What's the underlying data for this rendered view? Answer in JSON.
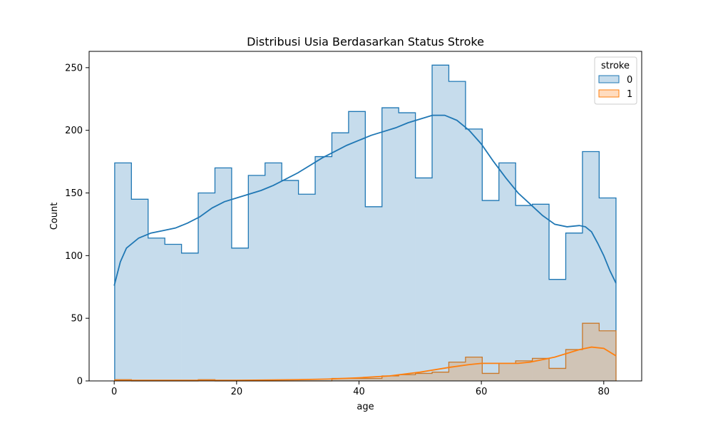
{
  "chart_data": {
    "type": "histogram",
    "title": "Distribusi Usia Berdasarkan Status Stroke",
    "xlabel": "age",
    "ylabel": "Count",
    "xlim": [
      -4.1,
      86.2
    ],
    "ylim": [
      0,
      263
    ],
    "x_ticks": [
      0,
      20,
      40,
      60,
      80
    ],
    "y_ticks": [
      0,
      50,
      100,
      150,
      200,
      250
    ],
    "grid": false,
    "legend": {
      "title": "stroke",
      "position": "top-right"
    },
    "bin_edges": [
      0.08,
      2.81,
      5.54,
      8.27,
      11.0,
      13.73,
      16.46,
      19.19,
      21.92,
      24.65,
      27.38,
      30.11,
      32.84,
      35.57,
      38.3,
      41.03,
      43.76,
      46.49,
      49.22,
      51.95,
      54.68,
      57.41,
      60.14,
      62.87,
      65.6,
      68.33,
      71.06,
      73.79,
      76.52,
      79.25,
      82.0
    ],
    "series": [
      {
        "name": "0",
        "color": "#1f77b4",
        "fill": "#c6dcec",
        "counts": [
          174,
          145,
          114,
          109,
          102,
          150,
          170,
          106,
          164,
          174,
          160,
          149,
          179,
          198,
          215,
          139,
          218,
          214,
          162,
          252,
          239,
          201,
          144,
          174,
          140,
          141,
          81,
          118,
          183,
          146
        ],
        "kde": [
          [
            0,
            76
          ],
          [
            1,
            95
          ],
          [
            2,
            106
          ],
          [
            4,
            114
          ],
          [
            6,
            118
          ],
          [
            8,
            120
          ],
          [
            10,
            122
          ],
          [
            12,
            126
          ],
          [
            14,
            131
          ],
          [
            16,
            138
          ],
          [
            18,
            143
          ],
          [
            20,
            146
          ],
          [
            22,
            149
          ],
          [
            24,
            152
          ],
          [
            26,
            156
          ],
          [
            28,
            161
          ],
          [
            30,
            166
          ],
          [
            32,
            172
          ],
          [
            34,
            178
          ],
          [
            36,
            183
          ],
          [
            38,
            188
          ],
          [
            40,
            192
          ],
          [
            42,
            196
          ],
          [
            44,
            199
          ],
          [
            46,
            202
          ],
          [
            48,
            206
          ],
          [
            50,
            209
          ],
          [
            52,
            212
          ],
          [
            54,
            212
          ],
          [
            56,
            208
          ],
          [
            58,
            200
          ],
          [
            60,
            189
          ],
          [
            62,
            175
          ],
          [
            64,
            162
          ],
          [
            66,
            150
          ],
          [
            68,
            141
          ],
          [
            70,
            132
          ],
          [
            72,
            125
          ],
          [
            74,
            123
          ],
          [
            76,
            124
          ],
          [
            77,
            123
          ],
          [
            78,
            119
          ],
          [
            79,
            110
          ],
          [
            80,
            100
          ],
          [
            81,
            88
          ],
          [
            82,
            78
          ]
        ]
      },
      {
        "name": "1",
        "color": "#ff7f0e",
        "fill": "#d0c4b6",
        "counts": [
          1,
          0,
          0,
          0,
          0,
          1,
          0,
          0,
          0,
          0,
          0,
          0,
          0,
          2,
          2,
          2,
          4,
          5,
          6,
          7,
          15,
          19,
          6,
          14,
          16,
          18,
          10,
          25,
          46,
          40
        ],
        "kde": [
          [
            0,
            0.5
          ],
          [
            10,
            0.5
          ],
          [
            20,
            0.5
          ],
          [
            30,
            1
          ],
          [
            35,
            1.5
          ],
          [
            40,
            2.5
          ],
          [
            45,
            4
          ],
          [
            50,
            7
          ],
          [
            55,
            11
          ],
          [
            58,
            13
          ],
          [
            60,
            14
          ],
          [
            62,
            14
          ],
          [
            64,
            14
          ],
          [
            66,
            14
          ],
          [
            68,
            15
          ],
          [
            70,
            17
          ],
          [
            72,
            19
          ],
          [
            74,
            22
          ],
          [
            76,
            25
          ],
          [
            78,
            27
          ],
          [
            80,
            26
          ],
          [
            82,
            20
          ]
        ]
      }
    ]
  }
}
